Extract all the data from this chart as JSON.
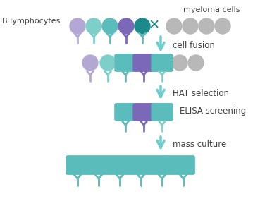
{
  "bg_color": "#ffffff",
  "colors": {
    "lavender": "#b3a8d4",
    "teal_light": "#7ececa",
    "teal_mid": "#5bbcbc",
    "teal_dark": "#1a8a8a",
    "purple": "#7b68b8",
    "gray": "#b8b8b8",
    "gray_light": "#c8c8c8",
    "arrow": "#6ccece",
    "cross": "#1a8a8a",
    "text": "#404040"
  },
  "labels": {
    "b_lymphocytes": "B lymphocytes",
    "myeloma_cells": "myeloma cells",
    "cell_fusion": "cell fusion",
    "hat_selection": "HAT selection",
    "elisa_screening": "ELISA screening",
    "mass_culture": "mass culture"
  },
  "figsize": [
    3.86,
    2.92
  ],
  "dpi": 100
}
